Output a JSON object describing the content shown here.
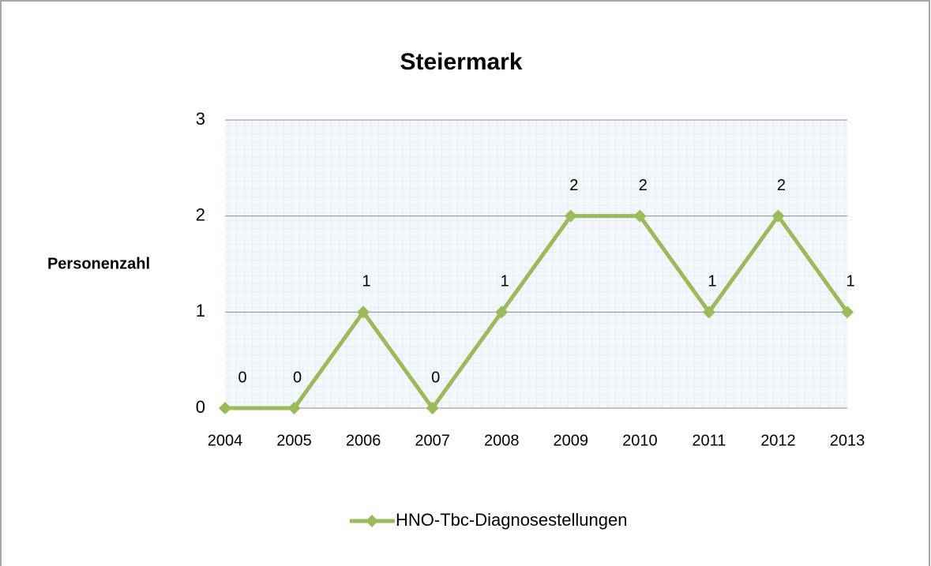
{
  "chart_data": {
    "type": "line",
    "title": "Steiermark",
    "y_label": "Personenzahl",
    "categories": [
      "2004",
      "2005",
      "2006",
      "2007",
      "2008",
      "2009",
      "2010",
      "2011",
      "2012",
      "2013"
    ],
    "series": [
      {
        "name": "HNO-Tbc-Diagnosestellungen",
        "color": "#9bbb59",
        "values": [
          0,
          0,
          1,
          0,
          1,
          2,
          2,
          1,
          2,
          1
        ]
      }
    ],
    "ylim": [
      0,
      3
    ],
    "yticks": [
      0,
      1,
      2,
      3
    ],
    "grid": true,
    "legend": "bottom",
    "data_labels": true
  }
}
